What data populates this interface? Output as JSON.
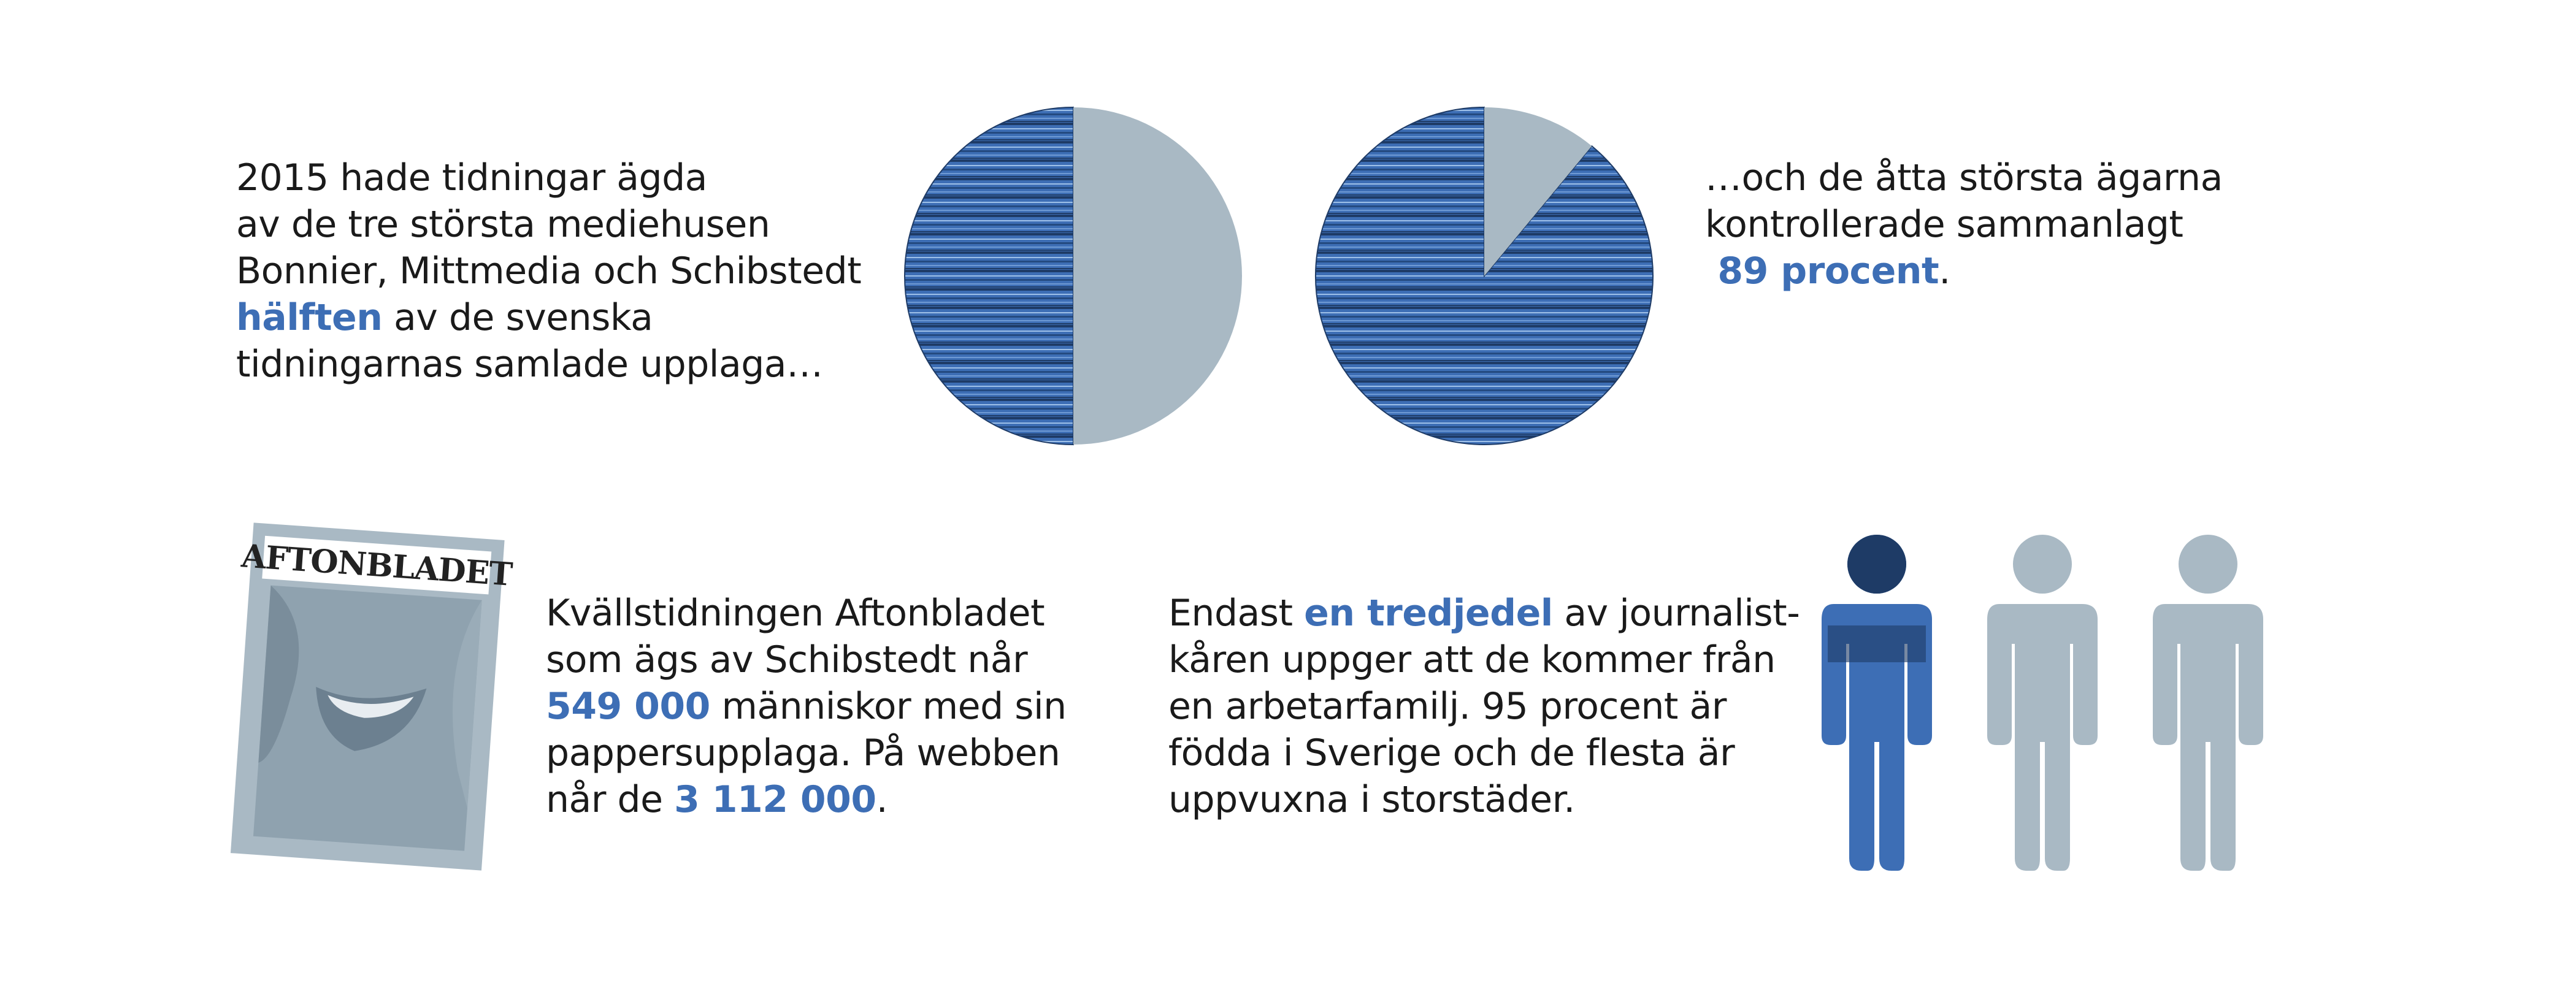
{
  "colors": {
    "blue": "#3d6eb5",
    "dark_blue": "#1e3b66",
    "gray": "#a9b9c4",
    "text": "#1a1a1a"
  },
  "icons": [
    "newspaper-stack-pie-icon",
    "newspaper-stack-pie-icon",
    "aftonbladet-cover-icon",
    "person-icon",
    "person-icon",
    "person-icon"
  ],
  "block1": {
    "l1": "2015 hade tidningar ägda",
    "l2": "av de tre största mediehusen",
    "l3": "Bonnier, Mittmedia och Schibstedt",
    "l4_hl": "hälften",
    "l4_rest": " av de svenska",
    "l5": "tidningarnas samlade upplaga…"
  },
  "block2": {
    "l1": "…och de åtta största ägarna",
    "l2": "kontrollerade sammanlagt",
    "l3_hl": " 89 procent",
    "l3_rest": "."
  },
  "block3": {
    "l1": "Kvällstidningen Aftonbladet",
    "l2": "som ägs av Schibstedt når",
    "l3_hl": "549 000",
    "l3_rest": " människor med sin",
    "l4": "pappersupplaga. På webben",
    "l5_pre": "når de ",
    "l5_hl": "3 112 000",
    "l5_rest": "."
  },
  "block4": {
    "l1_pre": "Endast ",
    "l1_hl": "en tredjedel",
    "l1_rest": " av journalist-",
    "l2": "kåren uppger att de kommer från",
    "l3": "en arbetarfamilj. 95 procent är",
    "l4": "födda i Sverige och de flesta är",
    "l5": "uppvuxna i storstäder."
  },
  "newspaper": {
    "masthead": "AFTONBLADET"
  },
  "chart_data": [
    {
      "type": "pie",
      "title": "",
      "series": [
        {
          "values": [
            50,
            50
          ]
        }
      ]
    },
    {
      "type": "pie",
      "title": "",
      "series": [
        {
          "values": [
            89,
            11
          ]
        }
      ]
    },
    {
      "type": "pictogram",
      "title": "",
      "series": [
        {
          "values": [
            1,
            2
          ]
        }
      ]
    }
  ]
}
